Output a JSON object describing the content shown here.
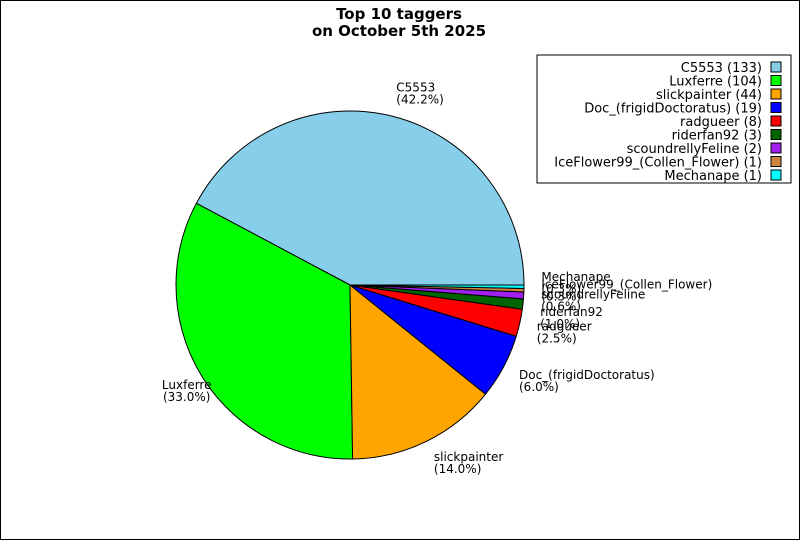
{
  "chart_data": {
    "type": "pie",
    "title_lines": [
      "Top 10 taggers",
      "on October 5th 2025"
    ],
    "legend_position": "top-right",
    "slices": [
      {
        "name": "C5553",
        "value": 133,
        "percent": "42.2%",
        "color": "#87ceeb",
        "legend_label": "C5553 (133)"
      },
      {
        "name": "Luxferre",
        "value": 104,
        "percent": "33.0%",
        "color": "#00ff00",
        "legend_label": "Luxferre (104)"
      },
      {
        "name": "slickpainter",
        "value": 44,
        "percent": "14.0%",
        "color": "#ffa500",
        "legend_label": "slickpainter (44)"
      },
      {
        "name": "Doc_(frigidDoctoratus)",
        "value": 19,
        "percent": "6.0%",
        "color": "#0000ff",
        "legend_label": "Doc_(frigidDoctoratus) (19)"
      },
      {
        "name": "radgueer",
        "value": 8,
        "percent": "2.5%",
        "color": "#ff0000",
        "legend_label": "radgueer (8)"
      },
      {
        "name": "riderfan92",
        "value": 3,
        "percent": "1.0%",
        "color": "#006400",
        "legend_label": "riderfan92 (3)"
      },
      {
        "name": "scoundrellyFeline",
        "value": 2,
        "percent": "0.6%",
        "color": "#a020f0",
        "legend_label": "scoundrellyFeline (2)"
      },
      {
        "name": "IceFlower99_(Collen_Flower)",
        "value": 1,
        "percent": "0.3%",
        "color": "#cd853f",
        "legend_label": "IceFlower99_(Collen_Flower) (1)"
      },
      {
        "name": "Mechanape",
        "value": 1,
        "percent": "0.3%",
        "color": "#00ffff",
        "legend_label": "Mechanape (1)"
      }
    ]
  }
}
